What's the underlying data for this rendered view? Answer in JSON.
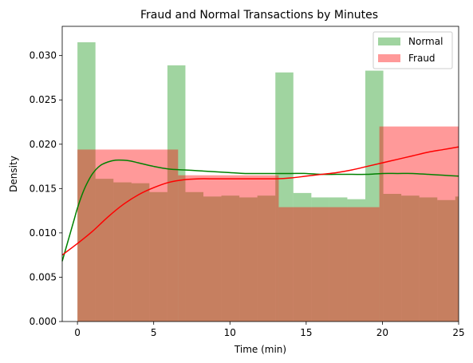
{
  "chart_data": {
    "type": "bar",
    "title": "Fraud and Normal Transactions by Minutes",
    "xlabel": "Time (min)",
    "ylabel": "Density",
    "xlim": [
      -1,
      25
    ],
    "ylim": [
      0,
      0.0333
    ],
    "xticks": [
      0,
      5,
      10,
      15,
      20,
      25
    ],
    "yticks": [
      0.0,
      0.005,
      0.01,
      0.015,
      0.02,
      0.025,
      0.03
    ],
    "ytick_labels": [
      "0.000",
      "0.005",
      "0.010",
      "0.015",
      "0.020",
      "0.025",
      "0.030"
    ],
    "grid": false,
    "legend_position": "top-right",
    "series": [
      {
        "name": "Normal",
        "kind": "histogram",
        "color": "#2ca02c",
        "alpha": 0.45,
        "bins": [
          {
            "x0": 0.0,
            "x1": 1.18,
            "y": 0.0315
          },
          {
            "x0": 1.18,
            "x1": 2.36,
            "y": 0.0161
          },
          {
            "x0": 2.36,
            "x1": 3.54,
            "y": 0.0157
          },
          {
            "x0": 3.54,
            "x1": 4.72,
            "y": 0.0156
          },
          {
            "x0": 4.72,
            "x1": 5.9,
            "y": 0.0146
          },
          {
            "x0": 5.9,
            "x1": 7.08,
            "y": 0.0289
          },
          {
            "x0": 7.08,
            "x1": 8.26,
            "y": 0.0146
          },
          {
            "x0": 8.26,
            "x1": 9.44,
            "y": 0.0141
          },
          {
            "x0": 9.44,
            "x1": 10.62,
            "y": 0.0142
          },
          {
            "x0": 10.62,
            "x1": 11.8,
            "y": 0.014
          },
          {
            "x0": 11.8,
            "x1": 12.98,
            "y": 0.0142
          },
          {
            "x0": 12.98,
            "x1": 14.16,
            "y": 0.0281
          },
          {
            "x0": 14.16,
            "x1": 15.34,
            "y": 0.0145
          },
          {
            "x0": 15.34,
            "x1": 16.52,
            "y": 0.014
          },
          {
            "x0": 16.52,
            "x1": 17.7,
            "y": 0.014
          },
          {
            "x0": 17.7,
            "x1": 18.88,
            "y": 0.0138
          },
          {
            "x0": 18.88,
            "x1": 20.06,
            "y": 0.0283
          },
          {
            "x0": 20.06,
            "x1": 21.24,
            "y": 0.0144
          },
          {
            "x0": 21.24,
            "x1": 22.42,
            "y": 0.0142
          },
          {
            "x0": 22.42,
            "x1": 23.6,
            "y": 0.014
          },
          {
            "x0": 23.6,
            "x1": 24.78,
            "y": 0.0137
          },
          {
            "x0": 24.78,
            "x1": 25.0,
            "y": 0.0141
          }
        ],
        "kde": {
          "color": "#008000",
          "x": [
            -1,
            -0.8,
            -0.5,
            -0.2,
            0,
            0.3,
            0.6,
            1,
            1.5,
            2,
            2.5,
            3,
            3.5,
            4,
            5,
            6,
            7,
            8,
            9,
            10,
            11,
            12,
            13,
            14,
            15,
            16,
            17,
            18,
            19,
            20,
            21,
            22,
            23,
            24,
            25
          ],
          "y": [
            0.0068,
            0.008,
            0.0098,
            0.0116,
            0.0128,
            0.0143,
            0.0155,
            0.0167,
            0.0176,
            0.018,
            0.0182,
            0.0182,
            0.0181,
            0.0179,
            0.0175,
            0.0172,
            0.0171,
            0.017,
            0.0169,
            0.0168,
            0.0167,
            0.0167,
            0.0167,
            0.0167,
            0.0167,
            0.0166,
            0.0166,
            0.0166,
            0.0166,
            0.0167,
            0.0167,
            0.0167,
            0.0166,
            0.0165,
            0.0164
          ]
        }
      },
      {
        "name": "Fraud",
        "kind": "histogram",
        "color": "#ff0000",
        "alpha": 0.4,
        "bins": [
          {
            "x0": 0.0,
            "x1": 6.6,
            "y": 0.0194
          },
          {
            "x0": 6.6,
            "x1": 13.2,
            "y": 0.0165
          },
          {
            "x0": 13.2,
            "x1": 19.8,
            "y": 0.0129
          },
          {
            "x0": 19.8,
            "x1": 25.0,
            "y": 0.022
          }
        ],
        "kde": {
          "color": "#ff0000",
          "x": [
            -1,
            0,
            1,
            2,
            3,
            4,
            5,
            6,
            7,
            8,
            9,
            10,
            11,
            12,
            13,
            14,
            15,
            16,
            17,
            18,
            19,
            20,
            21,
            22,
            23,
            24,
            25
          ],
          "y": [
            0.0075,
            0.0088,
            0.0102,
            0.0118,
            0.0132,
            0.0143,
            0.0151,
            0.0157,
            0.016,
            0.0161,
            0.0161,
            0.0161,
            0.0161,
            0.0161,
            0.0161,
            0.0162,
            0.0164,
            0.0166,
            0.0168,
            0.0171,
            0.0175,
            0.0179,
            0.0183,
            0.0187,
            0.0191,
            0.0194,
            0.0197
          ]
        }
      }
    ]
  }
}
